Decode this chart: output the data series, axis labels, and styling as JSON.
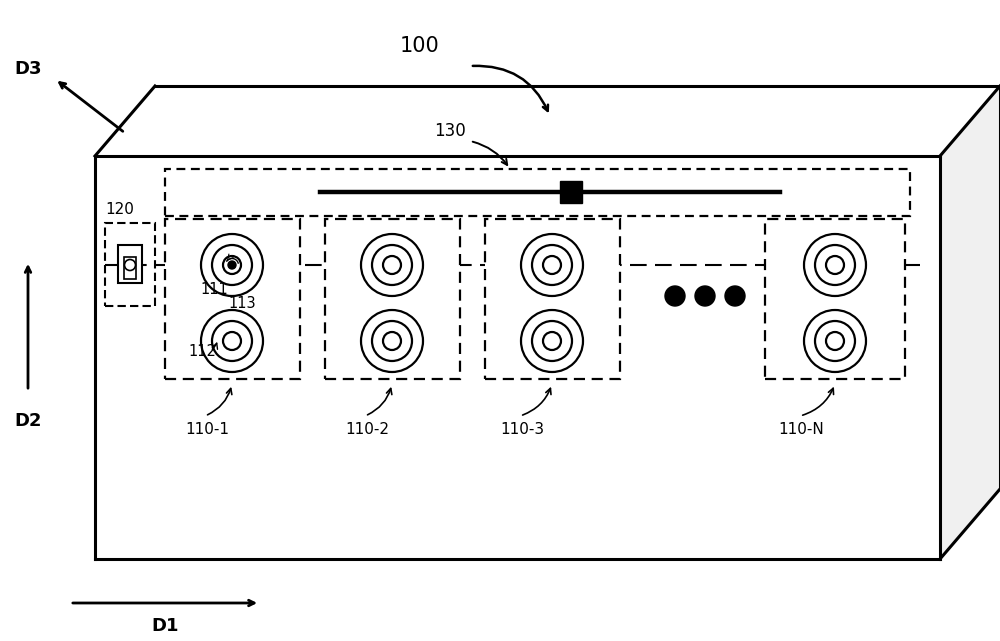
{
  "bg_color": "#ffffff",
  "label_100": "100",
  "label_D3": "D3",
  "label_D2": "D2",
  "label_D1": "D1",
  "label_130": "130",
  "label_120": "120",
  "label_111": "111",
  "label_112": "112",
  "label_113": "113",
  "label_110_1": "110-1",
  "label_110_2": "110-2",
  "label_110_3": "110-3",
  "label_110_N": "110-N",
  "dots": "●  ●  ●"
}
